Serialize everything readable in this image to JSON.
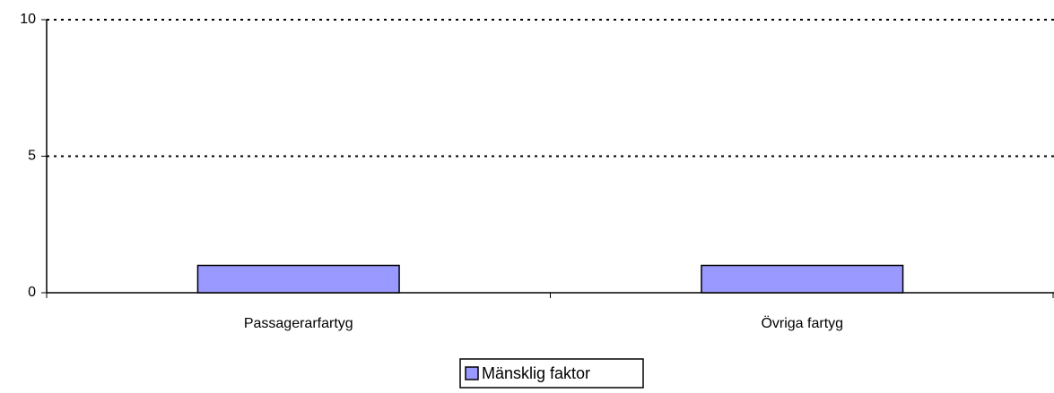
{
  "chart_data": {
    "type": "bar",
    "categories": [
      "Passagerarfartyg",
      "Övriga fartyg"
    ],
    "series": [
      {
        "name": "Mänsklig faktor",
        "color": "#9999ff",
        "values": [
          1,
          1
        ]
      }
    ],
    "ylim": [
      0,
      10
    ],
    "yticks": [
      0,
      5,
      10
    ],
    "grid": true,
    "legend": "bottom"
  }
}
